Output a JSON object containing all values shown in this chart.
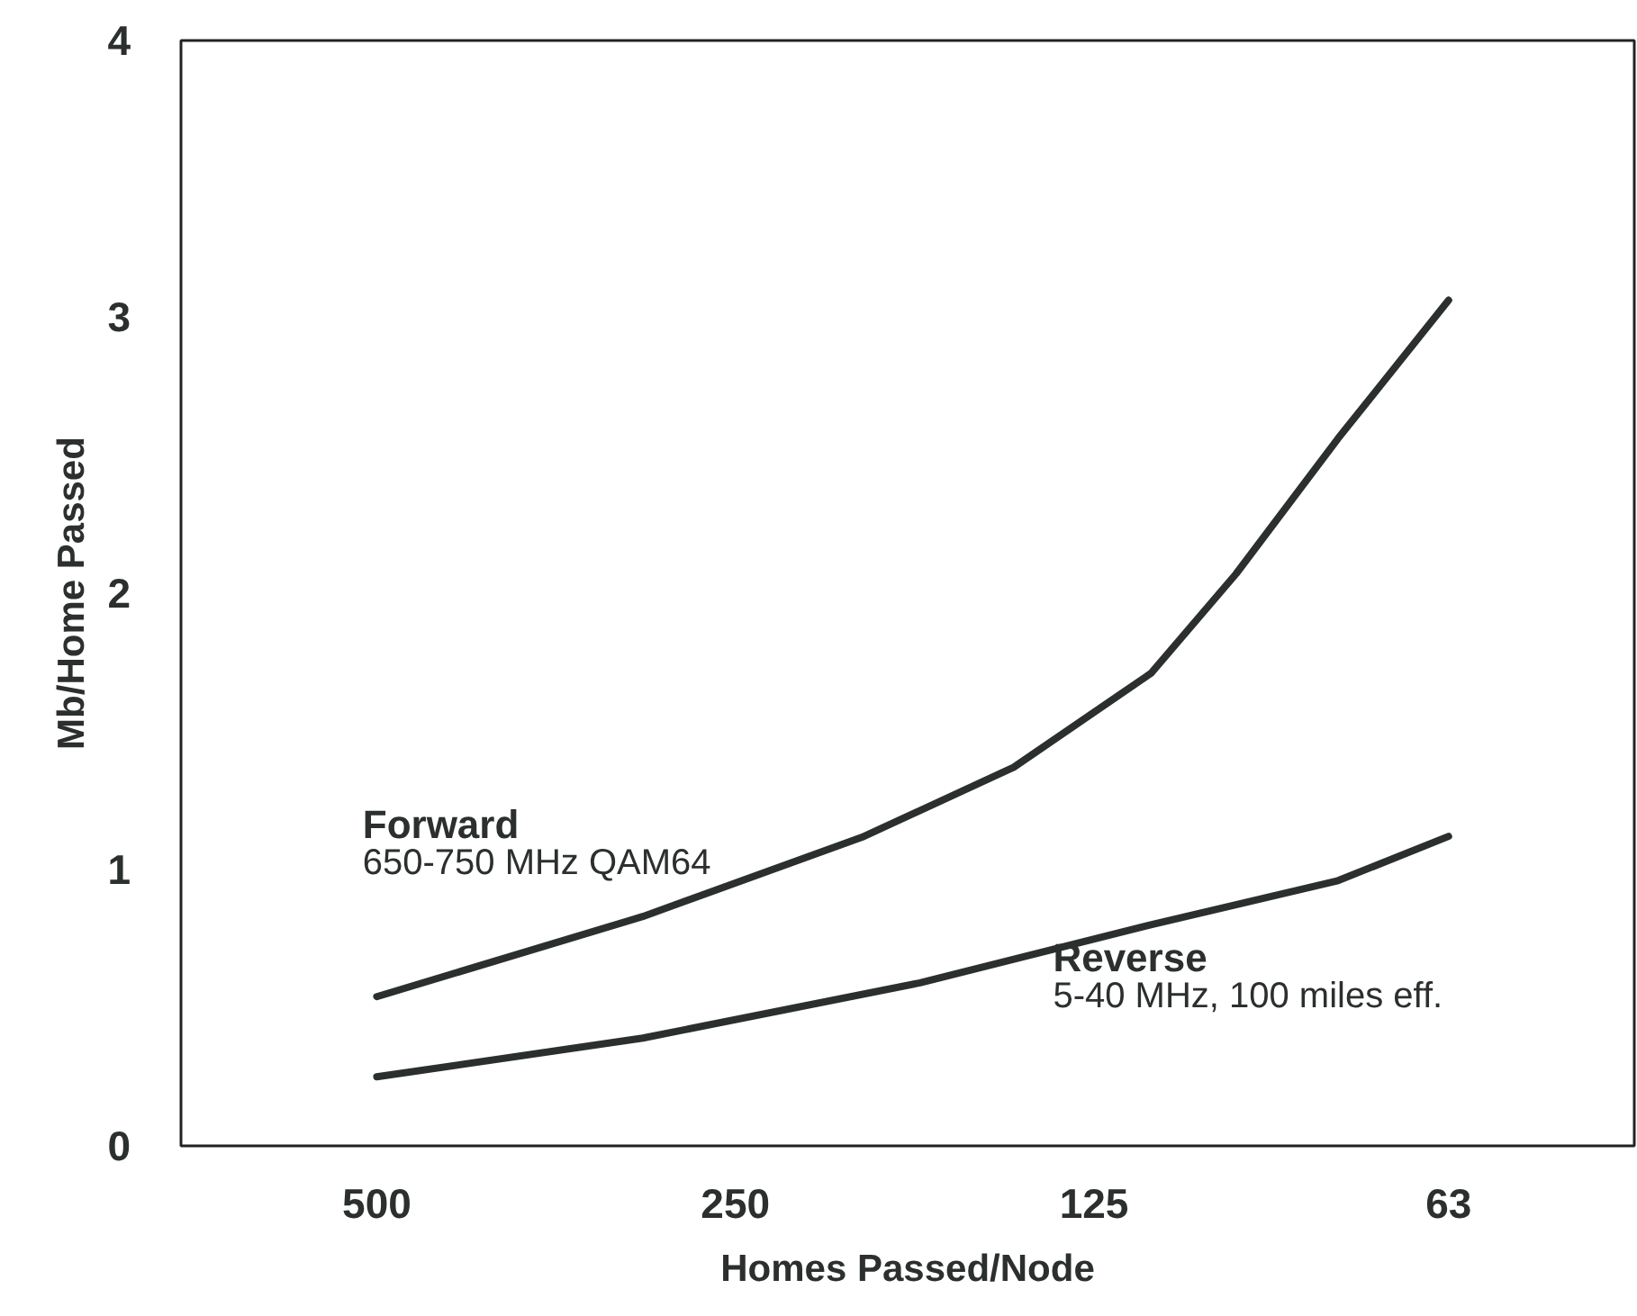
{
  "chart_data": {
    "type": "line",
    "xlabel": "Homes Passed/Node",
    "ylabel": "Mb/Home Passed",
    "log": "x",
    "xlim": [
      730,
      44
    ],
    "xticks": [
      500,
      250,
      125,
      63
    ],
    "ylim": [
      0,
      4
    ],
    "yticks": [
      0,
      1,
      2,
      3,
      4
    ],
    "grid": false,
    "legend": false,
    "marker": "none",
    "line_style": "solid",
    "series": [
      {
        "name": "Forward",
        "color": "#2b2f2e",
        "x": [
          500,
          299,
          195,
          146,
          112,
          95,
          78,
          63
        ],
        "values": [
          0.54,
          0.83,
          1.12,
          1.37,
          1.71,
          2.07,
          2.56,
          3.06
        ]
      },
      {
        "name": "Reverse",
        "color": "#2b2f2e",
        "x": [
          500,
          299,
          175,
          112,
          78,
          63
        ],
        "values": [
          0.25,
          0.39,
          0.59,
          0.8,
          0.96,
          1.12
        ]
      }
    ],
    "annotations": [
      "650-750 MHz QAM64",
      "5-40 MHz, 100 miles eff."
    ]
  }
}
